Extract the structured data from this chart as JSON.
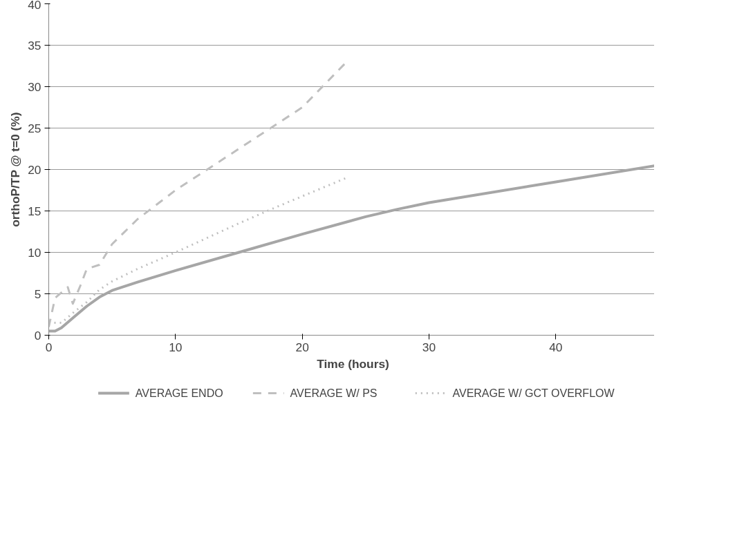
{
  "chart_data": {
    "type": "line",
    "xlabel": "Time (hours)",
    "ylabel": "orthoP/TP @ t=0 (%)",
    "xlim": [
      0,
      48
    ],
    "xticks": [
      0,
      10,
      20,
      30,
      40
    ],
    "ylim": [
      0,
      40
    ],
    "yticks": [
      0,
      5,
      10,
      15,
      20,
      25,
      30,
      35,
      40
    ],
    "grid": "y",
    "legend": "bottom",
    "marker": "none",
    "series": [
      {
        "name": "AVERAGE ENDO",
        "color": "#a6a6a6",
        "line_style": "solid",
        "x": [
          0,
          0.5,
          1,
          2,
          3,
          4,
          5,
          7,
          10,
          15,
          20,
          25,
          27.5,
          30,
          40,
          48
        ],
        "values": [
          0.5,
          0.5,
          0.9,
          2.2,
          3.5,
          4.6,
          5.4,
          6.4,
          7.8,
          10,
          12.2,
          14.3,
          15.2,
          16,
          18.5,
          20.5
        ]
      },
      {
        "name": "AVERAGE W/ PS",
        "color": "#bfbfbf",
        "line_style": "dashed",
        "x": [
          0,
          0.5,
          1.5,
          1.9,
          2.5,
          3,
          4,
          5,
          7,
          10,
          15,
          20,
          23.5
        ],
        "values": [
          1,
          4.5,
          5.8,
          3.8,
          6,
          8,
          8.5,
          11,
          14,
          17.5,
          22.5,
          27.5,
          33
        ]
      },
      {
        "name": "AVERAGE W/ GCT OVERFLOW",
        "color": "#bfbfbf",
        "line_style": "dotted",
        "x": [
          0,
          1,
          2,
          3,
          4,
          5,
          7,
          10,
          15,
          18,
          23.5
        ],
        "values": [
          1.5,
          1.5,
          2.8,
          4,
          5.5,
          6.5,
          8,
          10,
          13.5,
          15.5,
          19
        ]
      }
    ]
  }
}
